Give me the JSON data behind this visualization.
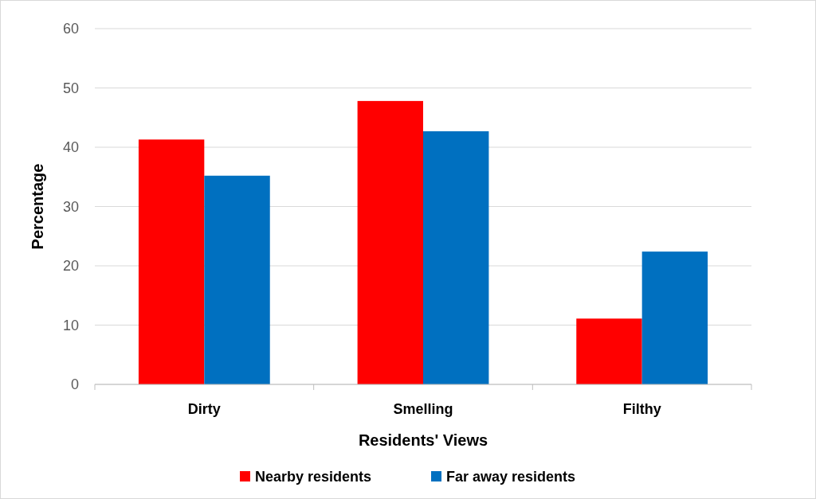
{
  "chart_data": {
    "type": "bar",
    "xlabel": "Residents' Views",
    "ylabel": "Percentage",
    "categories": [
      "Dirty",
      "Smelling",
      "Filthy"
    ],
    "series": [
      {
        "name": "Nearby residents",
        "color": "#ff0000",
        "values": [
          41.3,
          47.8,
          11.1
        ]
      },
      {
        "name": "Far away residents",
        "color": "#0070c0",
        "values": [
          35.2,
          42.7,
          22.4
        ]
      }
    ],
    "ylim": [
      0,
      60
    ],
    "yticks": [
      0,
      10,
      20,
      30,
      40,
      50,
      60
    ],
    "grid": "y",
    "legend": "bottom"
  }
}
